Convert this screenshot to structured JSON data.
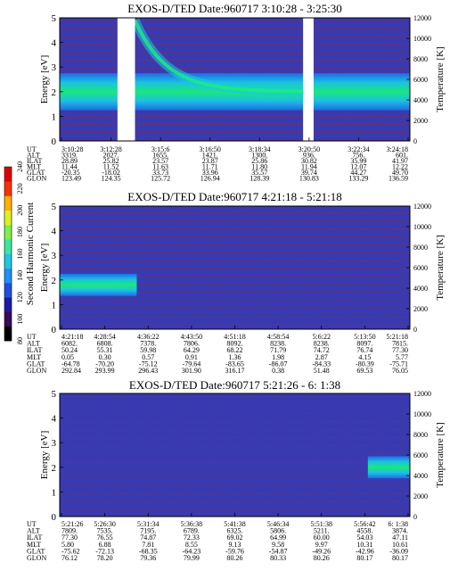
{
  "chart_data": [
    {
      "type": "heatmap",
      "title": "EXOS-D/TED   Date:960717  3:10:28 - 3:25:30",
      "ylabel": "Energy [eV]",
      "y2label": "Temperature [K]",
      "ylim": [
        0,
        5
      ],
      "y2lim": [
        0,
        12000
      ],
      "yticks": [
        "0",
        "1",
        "2",
        "3",
        "4",
        "5"
      ],
      "y2ticks": [
        "0",
        "2000",
        "4000",
        "6000",
        "8000",
        "10000",
        "12000"
      ],
      "gaps": [
        [
          0.165,
          0.215
        ],
        [
          0.695,
          0.725
        ]
      ],
      "band": {
        "center_ev": 2.0,
        "note": "high-intensity green/cyan band near 2 eV"
      },
      "rows": [
        {
          "label": "UT",
          "values": [
            "3:10:28",
            "3:12:28",
            "3:15:6",
            "3:16:50",
            "3:18:34",
            "3:20:50",
            "3:22:34",
            "3:24:18"
          ]
        },
        {
          "label": "ALT",
          "values": [
            "3319.",
            "2027.",
            "1655.",
            "1421.",
            "1300.",
            "936.",
            "756.",
            "601."
          ]
        },
        {
          "label": "ILAT",
          "values": [
            "28.89",
            "25.82",
            "23.57",
            "23.87",
            "25.86",
            "30.82",
            "35.99",
            "41.97"
          ]
        },
        {
          "label": "MLT",
          "values": [
            "11.44",
            "11.52",
            "11.63",
            "11.71",
            "11.80",
            "11.94",
            "12.07",
            "12.22"
          ]
        },
        {
          "label": "GLAT",
          "values": [
            "-20.35",
            "-18.02",
            "33.73",
            "33.96",
            "35.57",
            "39.74",
            "44.27",
            "49.70"
          ]
        },
        {
          "label": "GLON",
          "values": [
            "123.49",
            "124.35",
            "125.72",
            "126.94",
            "128.39",
            "130.83",
            "133.29",
            "136.59"
          ]
        }
      ]
    },
    {
      "type": "heatmap",
      "title": "EXOS-D/TED   Date:960717  4:21:18 - 5:21:18",
      "ylabel": "Energy [eV]",
      "y2label": "Temperature [K]",
      "ylim": [
        0,
        5
      ],
      "y2lim": [
        0,
        12000
      ],
      "yticks": [
        "0",
        "1",
        "2",
        "3",
        "4",
        "5"
      ],
      "y2ticks": [
        "0",
        "2000",
        "4000",
        "6000",
        "8000",
        "10000",
        "12000"
      ],
      "band": {
        "center_ev": 1.8,
        "x_end": 0.22
      },
      "rows": [
        {
          "label": "UT",
          "values": [
            "4:21:18",
            "4:28:54",
            "4:36:22",
            "4:43:50",
            "4:51:18",
            "4:58:54",
            "5:6:22",
            "5:13:50",
            "5:21:18"
          ]
        },
        {
          "label": "ALT",
          "values": [
            "6082.",
            "6808.",
            "7378.",
            "7806.",
            "8092.",
            "8238.",
            "8238.",
            "8097.",
            "7815."
          ]
        },
        {
          "label": "ILAT",
          "values": [
            "50.24",
            "55.31",
            "59.98",
            "64.29",
            "68.22",
            "71.79",
            "74.72",
            "76.74",
            "77.30"
          ]
        },
        {
          "label": "MLT",
          "values": [
            "0.05",
            "0.30",
            "0.57",
            "0.91",
            "1.36",
            "1.98",
            "2.87",
            "4.15",
            "5.77"
          ]
        },
        {
          "label": "GLAT",
          "values": [
            "-64.78",
            "-70.20",
            "-75.12",
            "-79.64",
            "-83.65",
            "-86.07",
            "-84.33",
            "-80.39",
            "-75.71"
          ]
        },
        {
          "label": "GLON",
          "values": [
            "292.84",
            "293.99",
            "296.43",
            "301.90",
            "316.17",
            "0.38",
            "51.48",
            "69.53",
            "76.05"
          ]
        }
      ]
    },
    {
      "type": "heatmap",
      "title": "EXOS-D/TED   Date:960717  5:21:26 - 6: 1:38",
      "ylabel": "Energy [eV]",
      "y2label": "Temperature [K]",
      "ylim": [
        0,
        5
      ],
      "y2lim": [
        0,
        12000
      ],
      "yticks": [
        "0",
        "1",
        "2",
        "3",
        "4",
        "5"
      ],
      "y2ticks": [
        "0",
        "2000",
        "4000",
        "6000",
        "8000",
        "10000",
        "12000"
      ],
      "band": {
        "center_ev": 2.0,
        "x_start": 0.88
      },
      "rows": [
        {
          "label": "UT",
          "values": [
            "5:21:26",
            "5:26:30",
            "5:31:34",
            "5:36:38",
            "5:41:38",
            "5:46:34",
            "5:51:38",
            "5:56:42",
            "6: 1:38"
          ]
        },
        {
          "label": "ALT",
          "values": [
            "7809.",
            "7535.",
            "7195.",
            "6789.",
            "6325.",
            "5806.",
            "5211.",
            "4558.",
            "3874."
          ]
        },
        {
          "label": "ILAT",
          "values": [
            "77.30",
            "76.55",
            "74.87",
            "72.33",
            "69.02",
            "64.99",
            "60.00",
            "54.03",
            "47.11"
          ]
        },
        {
          "label": "MLT",
          "values": [
            "5.80",
            "6.88",
            "7.81",
            "8.55",
            "9.13",
            "9.58",
            "9.97",
            "10.31",
            "10.61"
          ]
        },
        {
          "label": "GLAT",
          "values": [
            "-75.62",
            "-72.13",
            "-68.35",
            "-64.23",
            "-59.76",
            "-54.87",
            "-49.26",
            "-42.96",
            "-36.09"
          ]
        },
        {
          "label": "GLON",
          "values": [
            "76.12",
            "78.20",
            "79.36",
            "79.99",
            "80.26",
            "80.33",
            "80.26",
            "80.17",
            "80.17"
          ]
        }
      ]
    }
  ],
  "colorbar": {
    "label": "Second Harmonic Current",
    "ticks": [
      "80",
      "100",
      "120",
      "140",
      "160",
      "180",
      "200",
      "220",
      "240"
    ],
    "colors": [
      "#000000",
      "#3b0a5a",
      "#1a1aa8",
      "#1e4fe0",
      "#1e90ff",
      "#19c8e6",
      "#3ce6a0",
      "#7ef04a",
      "#dff020",
      "#ffb000",
      "#ff3000",
      "#e00000"
    ]
  },
  "colors": {
    "background": "#3a3ab0",
    "grid": "#9a2a2a",
    "band_core": "#19f07a",
    "band_mid": "#19c8e6",
    "band_outer": "#1e6ee8"
  }
}
